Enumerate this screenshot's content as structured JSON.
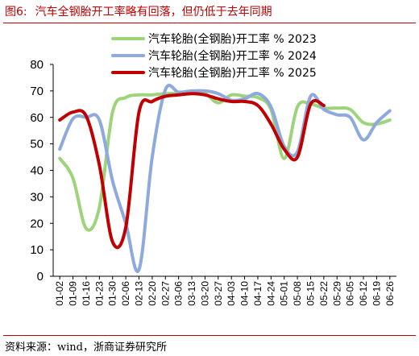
{
  "figure": {
    "number": "图6:",
    "title": "汽车全钢胎开工率略有回落，但仍低于去年同期"
  },
  "source": "资料来源：wind，浙商证券研究所",
  "colors": {
    "title": "#c00000",
    "series_2023": "#9dd37a",
    "series_2024": "#8ea9dc",
    "series_2025": "#c00000"
  },
  "chart_data": {
    "type": "line",
    "title": "",
    "xlabel": "",
    "ylabel": "",
    "ylim": [
      0,
      80
    ],
    "yticks": [
      0,
      10,
      20,
      30,
      40,
      50,
      60,
      70,
      80
    ],
    "xticks": [
      "01-02",
      "01-09",
      "01-16",
      "01-23",
      "01-30",
      "02-06",
      "02-13",
      "02-20",
      "02-27",
      "03-06",
      "03-13",
      "03-20",
      "03-27",
      "04-03",
      "04-10",
      "04-17",
      "04-24",
      "05-01",
      "05-08",
      "05-15",
      "05-22",
      "05-29",
      "06-05",
      "06-12",
      "06-19",
      "06-26"
    ],
    "grid": false,
    "legend": "top-right",
    "series": [
      {
        "name": "汽车轮胎(全钢胎)开工率 % 2023",
        "color": "#9dd37a",
        "values": [
          44.5,
          37,
          18,
          26,
          62,
          67.5,
          68.5,
          68.5,
          69,
          69,
          69,
          69,
          65.5,
          68.5,
          68,
          67.5,
          63,
          44.5,
          64,
          65,
          63.5,
          63.5,
          63,
          58,
          57.5,
          59
        ]
      },
      {
        "name": "汽车轮胎(全钢胎)开工率 % 2024",
        "color": "#8ea9dc",
        "values": [
          48,
          59.5,
          60,
          59,
          36,
          20,
          2.5,
          45,
          70.5,
          69.5,
          70,
          70,
          69,
          66.5,
          67,
          69,
          64,
          49,
          47,
          68,
          63,
          61,
          60,
          51.5,
          58,
          62.5
        ]
      },
      {
        "name": "汽车轮胎(全钢胎)开工率 % 2025",
        "color": "#c00000",
        "values": [
          59,
          62,
          60.5,
          42,
          13,
          18.5,
          62,
          66,
          68,
          68.5,
          69,
          68.5,
          67,
          66,
          66,
          64.5,
          57.5,
          48,
          45,
          65,
          64.5
        ]
      }
    ]
  }
}
